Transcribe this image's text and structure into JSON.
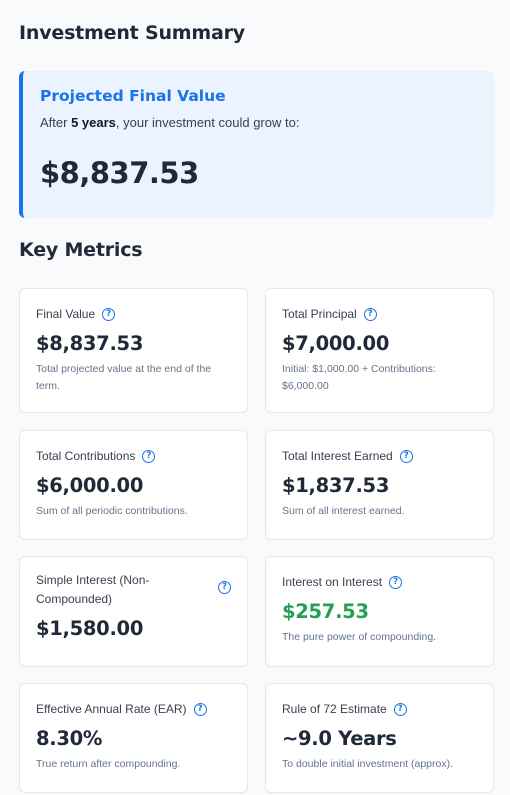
{
  "summary": {
    "title": "Investment Summary",
    "hero": {
      "title": "Projected Final Value",
      "sub_before": "After ",
      "sub_bold": "5 years",
      "sub_after": ", your investment could grow to:",
      "value": "$8,837.53"
    }
  },
  "metrics": {
    "title": "Key Metrics",
    "help_icon_glyph": "?",
    "cards": [
      {
        "label": "Final Value",
        "value": "$8,837.53",
        "desc": "Total projected value at the end of the term."
      },
      {
        "label": "Total Principal",
        "value": "$7,000.00",
        "desc": "Initial: $1,000.00 + Contributions: $6,000.00"
      },
      {
        "label": "Total Contributions",
        "value": "$6,000.00",
        "desc": "Sum of all periodic contributions."
      },
      {
        "label": "Total Interest Earned",
        "value": "$1,837.53",
        "desc": "Sum of all interest earned."
      },
      {
        "label": "Simple Interest (Non-Compounded)",
        "value": "$1,580.00",
        "desc": ""
      },
      {
        "label": "Interest on Interest",
        "value": "$257.53",
        "desc": "The pure power of compounding.",
        "value_color": "#22a055"
      },
      {
        "label": "Effective Annual Rate (EAR)",
        "value": "8.30%",
        "desc": "True return after compounding."
      },
      {
        "label": "Rule of 72 Estimate",
        "value": "~9.0 Years",
        "desc": "To double initial investment (approx)."
      }
    ]
  }
}
